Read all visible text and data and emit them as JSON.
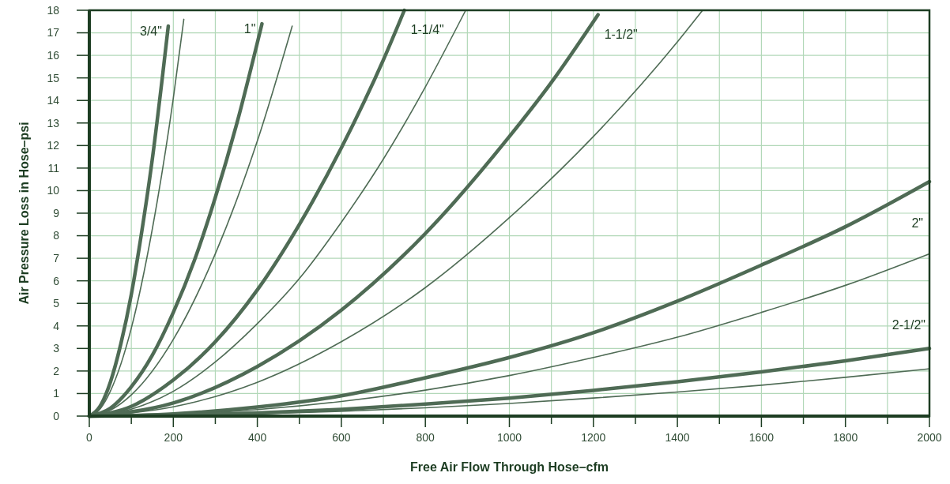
{
  "chart_data": {
    "type": "line",
    "xlabel": "Free Air Flow Through Hose–cfm",
    "ylabel": "Air Pressure Loss in Hose–psi",
    "xlim": [
      0,
      2000
    ],
    "ylim": [
      0,
      18
    ],
    "xticks": [
      0,
      {
        "value": 100,
        "label": null
      },
      200,
      {
        "value": 300,
        "label": null
      },
      400,
      {
        "value": 500,
        "label": null
      },
      600,
      {
        "value": 700,
        "label": null
      },
      800,
      {
        "value": 900,
        "label": null
      },
      1000,
      {
        "value": 1100,
        "label": null
      },
      1200,
      {
        "value": 1300,
        "label": null
      },
      1400,
      {
        "value": 1500,
        "label": null
      },
      1600,
      {
        "value": 1700,
        "label": null
      },
      1800,
      {
        "value": 1900,
        "label": null
      },
      2000
    ],
    "yticks": [
      0,
      1,
      2,
      3,
      4,
      5,
      6,
      7,
      8,
      9,
      10,
      11,
      12,
      13,
      14,
      15,
      16,
      17,
      18
    ],
    "grid": true,
    "marker": "none",
    "line_style": "solid",
    "series": [
      {
        "name": "3/4\"",
        "color": "#4f6b55",
        "x": [
          0,
          25,
          50,
          75,
          100,
          125,
          150,
          175,
          188
        ],
        "values": [
          0,
          0.42,
          1.5,
          3.2,
          5.4,
          8.2,
          11.4,
          15.2,
          17.3
        ]
      },
      {
        "color": "#4f6b55",
        "x": [
          0,
          25,
          50,
          100,
          150,
          200,
          225
        ],
        "values": [
          0,
          0.3,
          1.1,
          3.9,
          8.3,
          14.1,
          17.6
        ]
      },
      {
        "name": "1\"",
        "color": "#4f6b55",
        "x": [
          0,
          50,
          100,
          150,
          200,
          250,
          300,
          350,
          411
        ],
        "values": [
          0,
          0.35,
          1.3,
          2.7,
          4.6,
          6.9,
          9.7,
          12.9,
          17.4
        ]
      },
      {
        "color": "#4f6b55",
        "x": [
          0,
          50,
          100,
          200,
          300,
          400,
          483
        ],
        "values": [
          0,
          0.26,
          0.94,
          3.4,
          7.2,
          12.2,
          17.3
        ]
      },
      {
        "name": "1-1/4\"",
        "color": "#4f6b55",
        "x": [
          0,
          100,
          200,
          300,
          400,
          500,
          600,
          700,
          750
        ],
        "values": [
          0,
          0.43,
          1.6,
          3.3,
          5.6,
          8.5,
          11.9,
          15.8,
          18
        ]
      },
      {
        "color": "#4f6b55",
        "x": [
          0,
          100,
          200,
          300,
          400,
          500,
          600,
          700,
          800,
          896
        ],
        "values": [
          0,
          0.31,
          1.1,
          2.4,
          4.1,
          6.1,
          8.6,
          11.4,
          14.6,
          18
        ]
      },
      {
        "name": "1-1/2\"",
        "color": "#4f6b55",
        "x": [
          0,
          200,
          400,
          600,
          800,
          1000,
          1100,
          1211
        ],
        "values": [
          0,
          0.58,
          2.2,
          4.7,
          8.1,
          12.4,
          14.8,
          17.8
        ]
      },
      {
        "color": "#4f6b55",
        "x": [
          0,
          200,
          400,
          600,
          800,
          1000,
          1200,
          1400,
          1460
        ],
        "values": [
          0,
          0.41,
          1.5,
          3.3,
          5.7,
          8.8,
          12.4,
          16.6,
          18
        ]
      },
      {
        "name": "2\"",
        "color": "#4f6b55",
        "x": [
          0,
          200,
          400,
          600,
          800,
          1000,
          1200,
          1400,
          1600,
          1800,
          2000
        ],
        "values": [
          0,
          0.1,
          0.4,
          0.9,
          1.7,
          2.6,
          3.7,
          5.1,
          6.7,
          8.4,
          10.4
        ]
      },
      {
        "color": "#4f6b55",
        "x": [
          0,
          200,
          400,
          600,
          800,
          1000,
          1200,
          1400,
          1600,
          1800,
          2000
        ],
        "values": [
          0,
          0.07,
          0.29,
          0.65,
          1.15,
          1.8,
          2.6,
          3.5,
          4.6,
          5.8,
          7.2
        ]
      },
      {
        "name": "2-1/2\"",
        "color": "#4f6b55",
        "x": [
          0,
          200,
          400,
          600,
          800,
          1000,
          1200,
          1400,
          1600,
          1800,
          2000
        ],
        "values": [
          0,
          0.04,
          0.14,
          0.3,
          0.53,
          0.8,
          1.14,
          1.52,
          1.96,
          2.45,
          3
        ]
      },
      {
        "color": "#4f6b55",
        "x": [
          0,
          200,
          400,
          600,
          800,
          1000,
          1200,
          1400,
          1600,
          1800,
          2000
        ],
        "values": [
          0,
          0.03,
          0.1,
          0.21,
          0.37,
          0.56,
          0.8,
          1.07,
          1.37,
          1.72,
          2.1
        ]
      }
    ]
  }
}
